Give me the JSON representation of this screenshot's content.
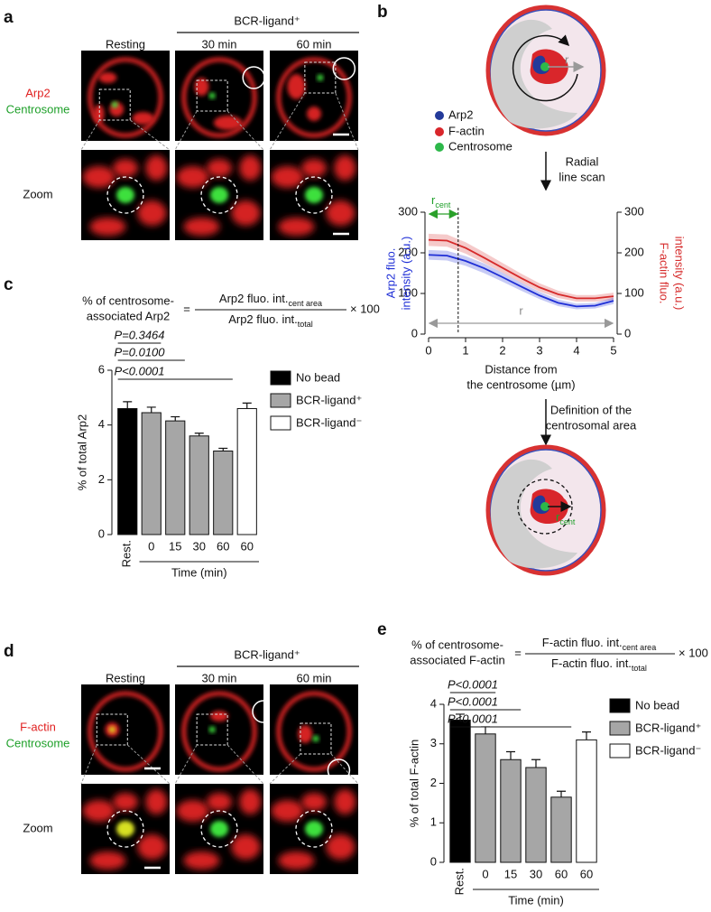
{
  "panels": {
    "a": {
      "letter": "a",
      "group": "BCR-ligand⁺",
      "columns": [
        "Resting",
        "30 min",
        "60 min"
      ],
      "stain_red": "Arp2",
      "stain_green": "Centrosome",
      "zoom": "Zoom"
    },
    "b": {
      "letter": "b",
      "legend": [
        "Arp2",
        "F-actin",
        "Centrosome"
      ],
      "step1": [
        "Radial",
        "line scan"
      ],
      "step2": [
        "Definition of the",
        "centrosomal area"
      ],
      "r": "r",
      "r_cent": {
        "text": "r",
        "sub": "cent"
      }
    },
    "c": {
      "letter": "c",
      "formula": {
        "lhs": [
          "% of centrosome-",
          "associated Arp2"
        ],
        "equals": "=",
        "num": "Arp2 fluo. int.",
        "num_sub": "cent area",
        "den": "Arp2 fluo. int.",
        "den_sub": "total",
        "times": "× 100"
      }
    },
    "d": {
      "letter": "d",
      "group": "BCR-ligand⁺",
      "columns": [
        "Resting",
        "30 min",
        "60 min"
      ],
      "stain_red": "F-actin",
      "stain_green": "Centrosome",
      "zoom": "Zoom"
    },
    "e": {
      "letter": "e",
      "formula": {
        "lhs": [
          "% of centrosome-",
          "associated F-actin"
        ],
        "equals": "=",
        "num": "F-actin fluo. int.",
        "num_sub": "cent area",
        "den": "F-actin fluo. int.",
        "den_sub": "total",
        "times": "× 100"
      }
    }
  },
  "chart_data": [
    {
      "type": "bar",
      "ylabel": "% of total Arp2",
      "xlabel": "Time (min)",
      "categories": [
        "Rest.",
        "0",
        "15",
        "30",
        "60",
        "60"
      ],
      "series": [
        {
          "name": "No bead",
          "color": "#000000",
          "values": [
            4.6,
            null,
            null,
            null,
            null,
            null
          ],
          "errors": [
            0.25,
            null,
            null,
            null,
            null,
            null
          ]
        },
        {
          "name": "BCR-ligand⁺",
          "color": "#a6a6a6",
          "values": [
            null,
            4.45,
            4.15,
            3.6,
            3.05,
            null
          ],
          "errors": [
            null,
            0.2,
            0.15,
            0.1,
            0.1,
            null
          ]
        },
        {
          "name": "BCR-ligand⁻",
          "color": "#ffffff",
          "values": [
            null,
            null,
            null,
            null,
            null,
            4.6
          ],
          "errors": [
            null,
            null,
            null,
            null,
            null,
            0.2
          ]
        }
      ],
      "ylim": [
        0,
        6
      ],
      "yticks": [
        0,
        2,
        4,
        6
      ],
      "p_values": [
        "P=0.3464",
        "P=0.0100",
        "P<0.0001"
      ]
    },
    {
      "type": "line",
      "xlabel": [
        "Distance from",
        "the centrosome (µm)"
      ],
      "ylabel": [
        "Arp2 fluo.",
        "intensity (a.u.)"
      ],
      "y2label": [
        "F-actin fluo.",
        "intensity (a.u.)"
      ],
      "x": [
        0,
        0.5,
        1,
        1.5,
        2,
        2.5,
        3,
        3.5,
        4,
        4.5,
        5
      ],
      "series": [
        {
          "name": "Arp2",
          "color": "#1f2fd6",
          "values": [
            195,
            193,
            180,
            162,
            140,
            117,
            95,
            77,
            68,
            70,
            82
          ],
          "errors": [
            12,
            12,
            12,
            12,
            11,
            10,
            9,
            8,
            7,
            7,
            8
          ]
        },
        {
          "name": "F-actin",
          "color": "#d62a2a",
          "axis": "y2",
          "values": [
            232,
            230,
            212,
            188,
            163,
            138,
            115,
            98,
            88,
            88,
            93
          ],
          "errors": [
            15,
            15,
            14,
            13,
            12,
            11,
            10,
            9,
            8,
            8,
            9
          ]
        }
      ],
      "xlim": [
        0,
        5
      ],
      "xticks": [
        0,
        1,
        2,
        3,
        4,
        5
      ],
      "ylim": [
        0,
        300
      ],
      "yticks": [
        0,
        100,
        200,
        300
      ],
      "y2lim": [
        0,
        300
      ],
      "y2ticks": [
        0,
        100,
        200,
        300
      ],
      "r_cent": {
        "text": "r",
        "sub": "cent",
        "x": 0.8
      },
      "r_label": "r"
    },
    {
      "type": "bar",
      "ylabel": "% of total F-actin",
      "xlabel": "Time (min)",
      "categories": [
        "Rest.",
        "0",
        "15",
        "30",
        "60",
        "60"
      ],
      "series": [
        {
          "name": "No bead",
          "color": "#000000",
          "values": [
            3.6,
            null,
            null,
            null,
            null,
            null
          ],
          "errors": [
            0.15,
            null,
            null,
            null,
            null,
            null
          ]
        },
        {
          "name": "BCR-ligand⁺",
          "color": "#a6a6a6",
          "values": [
            null,
            3.25,
            2.6,
            2.4,
            1.65,
            null
          ],
          "errors": [
            null,
            0.18,
            0.2,
            0.2,
            0.15,
            null
          ]
        },
        {
          "name": "BCR-ligand⁻",
          "color": "#ffffff",
          "values": [
            null,
            null,
            null,
            null,
            null,
            3.1
          ],
          "errors": [
            null,
            null,
            null,
            null,
            null,
            0.2
          ]
        }
      ],
      "ylim": [
        0,
        4
      ],
      "yticks": [
        0,
        1,
        2,
        3,
        4
      ],
      "p_values": [
        "P<0.0001",
        "P<0.0001",
        "P<0.0001"
      ]
    }
  ]
}
